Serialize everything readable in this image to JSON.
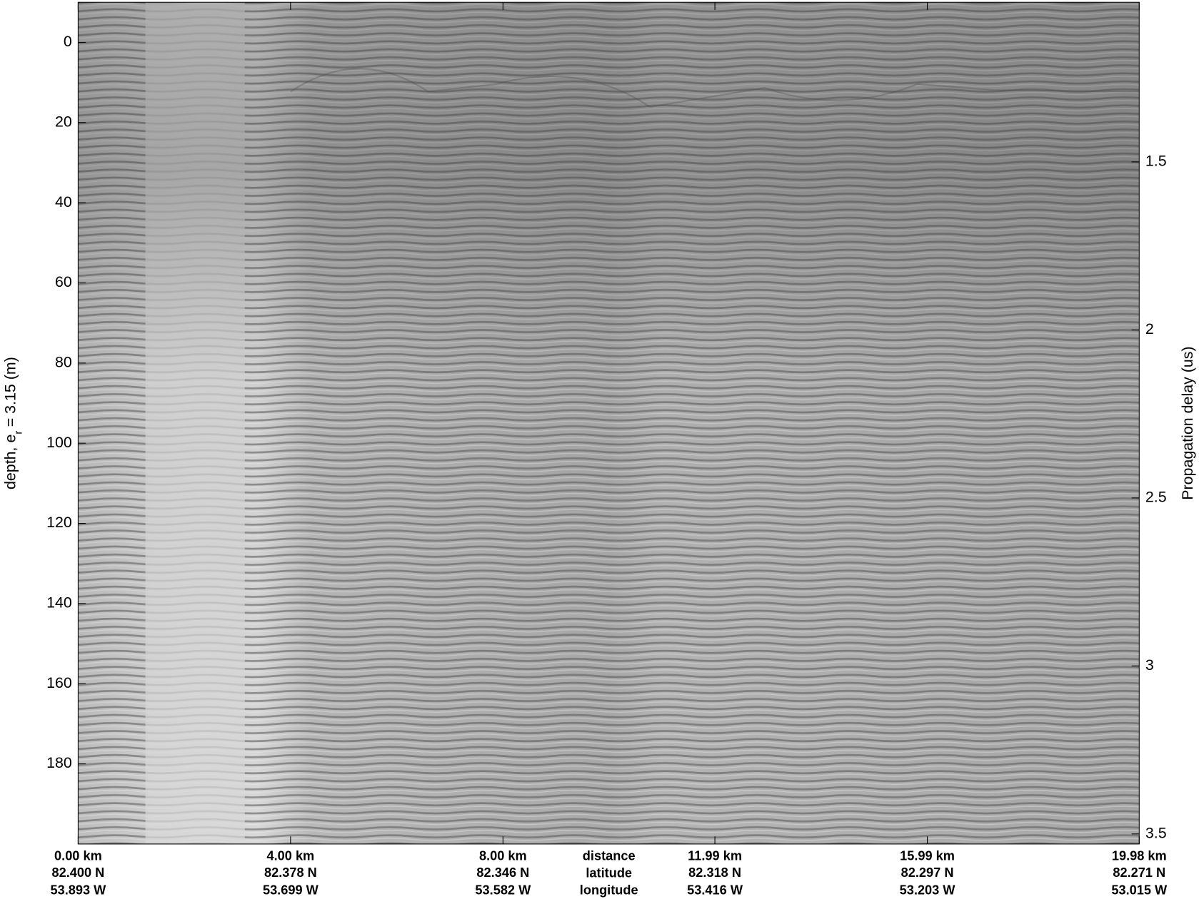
{
  "chart_data": {
    "type": "radargram",
    "ylabel": "depth, e",
    "ylabel_subscript": "r",
    "ylabel_suffix": "= 3.15 (m)",
    "ylim": [
      -10,
      200
    ],
    "yticks": [
      0,
      20,
      40,
      60,
      80,
      100,
      120,
      140,
      160,
      180
    ],
    "y2label": "Propagation delay (us)",
    "y2lim": [
      1.025,
      3.53
    ],
    "y2ticks": [
      1.5,
      2,
      2.5,
      3,
      3.5
    ],
    "xlim": [
      0,
      19.98
    ],
    "xticks": [
      {
        "value": 0,
        "label": "0.00 km"
      },
      {
        "value": 4,
        "label": "4.00 km"
      },
      {
        "value": 8,
        "label": "8.00 km"
      },
      {
        "value": 11.99,
        "label": "11.99 km"
      },
      {
        "value": 15.99,
        "label": "15.99 km"
      },
      {
        "value": 19.98,
        "label": "19.98 km"
      }
    ],
    "latitude_labels": [
      "82.400 N",
      "82.378 N",
      "82.346 N",
      "82.318 N",
      "82.297 N",
      "82.271 N"
    ],
    "longitude_labels": [
      "53.893 W",
      "53.699 W",
      "53.582 W",
      "53.416 W",
      "53.203 W",
      "53.015 W"
    ],
    "row_labels": [
      "distance",
      "latitude",
      "longitude"
    ]
  }
}
